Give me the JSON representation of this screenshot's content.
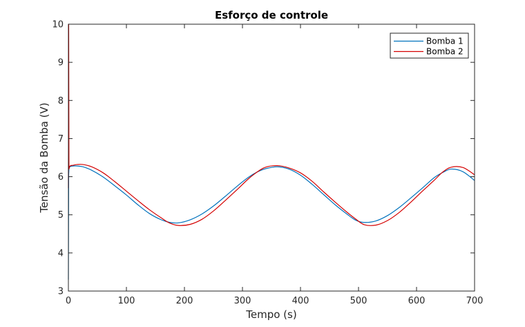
{
  "chart_data": {
    "type": "line",
    "title": "Esforço de controle",
    "xlabel": "Tempo (s)",
    "ylabel": "Tensão da Bomba (V)",
    "xlim": [
      0,
      700
    ],
    "ylim": [
      3,
      10
    ],
    "xticks": [
      0,
      100,
      200,
      300,
      400,
      500,
      600,
      700
    ],
    "yticks": [
      3,
      4,
      5,
      6,
      7,
      8,
      9,
      10
    ],
    "grid": false,
    "legend_position": "top-right",
    "series": [
      {
        "name": "Bomba 1",
        "color": "#0072BD",
        "x": [
          0,
          0.5,
          1,
          2,
          4,
          8,
          15,
          25,
          40,
          60,
          80,
          100,
          120,
          140,
          160,
          175,
          190,
          210,
          230,
          250,
          270,
          290,
          310,
          325,
          340,
          360,
          380,
          400,
          420,
          440,
          460,
          480,
          495,
          510,
          530,
          550,
          570,
          590,
          610,
          630,
          645,
          660,
          680,
          700
        ],
        "y": [
          3.3,
          6.05,
          6.2,
          6.25,
          6.27,
          6.28,
          6.28,
          6.26,
          6.17,
          5.99,
          5.76,
          5.52,
          5.26,
          5.03,
          4.87,
          4.8,
          4.79,
          4.87,
          5.02,
          5.23,
          5.48,
          5.74,
          5.98,
          6.12,
          6.21,
          6.26,
          6.2,
          6.04,
          5.8,
          5.53,
          5.26,
          5.02,
          4.86,
          4.8,
          4.84,
          4.98,
          5.19,
          5.44,
          5.7,
          5.97,
          6.11,
          6.2,
          6.13,
          5.9
        ]
      },
      {
        "name": "Bomba 2",
        "color": "#D40000",
        "x": [
          0,
          0.5,
          1,
          2,
          4,
          8,
          15,
          25,
          40,
          60,
          80,
          100,
          120,
          140,
          160,
          175,
          190,
          210,
          230,
          250,
          270,
          290,
          310,
          325,
          340,
          360,
          380,
          400,
          420,
          440,
          460,
          480,
          495,
          510,
          530,
          550,
          570,
          590,
          610,
          630,
          645,
          660,
          680,
          700
        ],
        "y": [
          5.7,
          10,
          6.2,
          6.27,
          6.29,
          6.3,
          6.32,
          6.32,
          6.26,
          6.1,
          5.87,
          5.62,
          5.37,
          5.13,
          4.92,
          4.78,
          4.72,
          4.75,
          4.88,
          5.1,
          5.37,
          5.65,
          5.94,
          6.12,
          6.25,
          6.29,
          6.23,
          6.1,
          5.88,
          5.6,
          5.33,
          5.07,
          4.89,
          4.74,
          4.73,
          4.85,
          5.06,
          5.33,
          5.62,
          5.9,
          6.12,
          6.25,
          6.24,
          6.05
        ]
      }
    ]
  }
}
